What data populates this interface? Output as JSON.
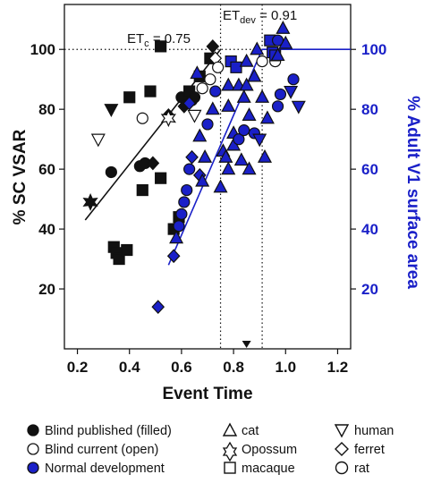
{
  "chart_data": {
    "type": "scatter",
    "xlabel": "Event Time",
    "ylabel": "% SC VSAR",
    "ylabel_right": "% Adult V1 surface area",
    "xlim": [
      0.15,
      1.25
    ],
    "ylim": [
      0,
      115
    ],
    "x_ticks": [
      "0.2",
      "0.4",
      "0.6",
      "0.8",
      "1.0",
      "1.2"
    ],
    "y_ticks": [
      "20",
      "40",
      "60",
      "80",
      "100"
    ],
    "y_ticks_right": [
      "20",
      "40",
      "60",
      "80",
      "100"
    ],
    "annotations": [
      {
        "main": "ET",
        "sub": "c",
        "rest": " = 0.75",
        "x": 0.75
      },
      {
        "main": "ET",
        "sub": "dev",
        "rest": " = 0.91",
        "x": 0.91
      }
    ],
    "arrow_marker_x": 0.85,
    "reference_line_y": 100,
    "colors": {
      "black": "#111111",
      "blue": "#1a20c8",
      "open": "#ffffff"
    },
    "series": [
      {
        "name": "Blind published (filled)",
        "color": "#111111",
        "points": [
          {
            "x": 0.25,
            "y": 49,
            "m": "star"
          },
          {
            "x": 0.33,
            "y": 59,
            "m": "circle"
          },
          {
            "x": 0.33,
            "y": 80,
            "m": "tri-down"
          },
          {
            "x": 0.34,
            "y": 34,
            "m": "square"
          },
          {
            "x": 0.35,
            "y": 32,
            "m": "square"
          },
          {
            "x": 0.36,
            "y": 30,
            "m": "square"
          },
          {
            "x": 0.39,
            "y": 33,
            "m": "square"
          },
          {
            "x": 0.4,
            "y": 84,
            "m": "square"
          },
          {
            "x": 0.44,
            "y": 61,
            "m": "circle"
          },
          {
            "x": 0.45,
            "y": 53,
            "m": "square"
          },
          {
            "x": 0.46,
            "y": 62,
            "m": "circle"
          },
          {
            "x": 0.48,
            "y": 86,
            "m": "square"
          },
          {
            "x": 0.49,
            "y": 62,
            "m": "diamond"
          },
          {
            "x": 0.52,
            "y": 101,
            "m": "square"
          },
          {
            "x": 0.52,
            "y": 57,
            "m": "square"
          },
          {
            "x": 0.55,
            "y": 78,
            "m": "diamond"
          },
          {
            "x": 0.57,
            "y": 40,
            "m": "square"
          },
          {
            "x": 0.59,
            "y": 44,
            "m": "square"
          },
          {
            "x": 0.6,
            "y": 84,
            "m": "circle"
          },
          {
            "x": 0.61,
            "y": 81,
            "m": "diamond"
          },
          {
            "x": 0.63,
            "y": 86,
            "m": "square"
          },
          {
            "x": 0.64,
            "y": 83,
            "m": "circle"
          },
          {
            "x": 0.65,
            "y": 84,
            "m": "circle"
          },
          {
            "x": 0.67,
            "y": 91,
            "m": "square"
          },
          {
            "x": 0.71,
            "y": 97,
            "m": "square"
          },
          {
            "x": 0.72,
            "y": 101,
            "m": "diamond"
          }
        ]
      },
      {
        "name": "Blind current (open)",
        "color": "#ffffff",
        "points": [
          {
            "x": 0.28,
            "y": 70,
            "m": "tri-down"
          },
          {
            "x": 0.45,
            "y": 77,
            "m": "circle"
          },
          {
            "x": 0.55,
            "y": 77,
            "m": "star"
          },
          {
            "x": 0.65,
            "y": 78,
            "m": "tri-down"
          },
          {
            "x": 0.68,
            "y": 87,
            "m": "circle"
          },
          {
            "x": 0.71,
            "y": 90,
            "m": "circle"
          },
          {
            "x": 0.73,
            "y": 97,
            "m": "diamond"
          },
          {
            "x": 0.74,
            "y": 94,
            "m": "circle"
          },
          {
            "x": 0.91,
            "y": 96,
            "m": "circle"
          },
          {
            "x": 0.96,
            "y": 96,
            "m": "circle"
          }
        ]
      },
      {
        "name": "Normal development",
        "color": "#1a20c8",
        "points": [
          {
            "x": 0.51,
            "y": 14,
            "m": "diamond"
          },
          {
            "x": 0.57,
            "y": 31,
            "m": "diamond"
          },
          {
            "x": 0.58,
            "y": 37,
            "m": "triangle"
          },
          {
            "x": 0.59,
            "y": 41,
            "m": "circle"
          },
          {
            "x": 0.6,
            "y": 45,
            "m": "circle"
          },
          {
            "x": 0.61,
            "y": 49,
            "m": "circle"
          },
          {
            "x": 0.62,
            "y": 53,
            "m": "circle"
          },
          {
            "x": 0.63,
            "y": 60,
            "m": "circle"
          },
          {
            "x": 0.63,
            "y": 82,
            "m": "diamond"
          },
          {
            "x": 0.64,
            "y": 64,
            "m": "diamond"
          },
          {
            "x": 0.66,
            "y": 92,
            "m": "triangle"
          },
          {
            "x": 0.67,
            "y": 58,
            "m": "diamond"
          },
          {
            "x": 0.67,
            "y": 71,
            "m": "triangle"
          },
          {
            "x": 0.68,
            "y": 56,
            "m": "triangle"
          },
          {
            "x": 0.69,
            "y": 64,
            "m": "triangle"
          },
          {
            "x": 0.7,
            "y": 75,
            "m": "circle"
          },
          {
            "x": 0.72,
            "y": 80,
            "m": "triangle"
          },
          {
            "x": 0.73,
            "y": 86,
            "m": "circle"
          },
          {
            "x": 0.75,
            "y": 54,
            "m": "triangle"
          },
          {
            "x": 0.76,
            "y": 66,
            "m": "triangle"
          },
          {
            "x": 0.77,
            "y": 64,
            "m": "triangle"
          },
          {
            "x": 0.78,
            "y": 60,
            "m": "triangle"
          },
          {
            "x": 0.78,
            "y": 81,
            "m": "triangle"
          },
          {
            "x": 0.78,
            "y": 88,
            "m": "triangle"
          },
          {
            "x": 0.79,
            "y": 96,
            "m": "square"
          },
          {
            "x": 0.8,
            "y": 68,
            "m": "triangle"
          },
          {
            "x": 0.8,
            "y": 72,
            "m": "triangle"
          },
          {
            "x": 0.81,
            "y": 94,
            "m": "square"
          },
          {
            "x": 0.82,
            "y": 70,
            "m": "circle"
          },
          {
            "x": 0.82,
            "y": 88,
            "m": "triangle"
          },
          {
            "x": 0.83,
            "y": 63,
            "m": "triangle"
          },
          {
            "x": 0.84,
            "y": 73,
            "m": "circle"
          },
          {
            "x": 0.84,
            "y": 84,
            "m": "triangle"
          },
          {
            "x": 0.85,
            "y": 96,
            "m": "triangle"
          },
          {
            "x": 0.85,
            "y": 88,
            "m": "triangle"
          },
          {
            "x": 0.86,
            "y": 60,
            "m": "triangle"
          },
          {
            "x": 0.86,
            "y": 78,
            "m": "triangle"
          },
          {
            "x": 0.88,
            "y": 91,
            "m": "triangle"
          },
          {
            "x": 0.88,
            "y": 72,
            "m": "circle"
          },
          {
            "x": 0.89,
            "y": 100,
            "m": "triangle"
          },
          {
            "x": 0.9,
            "y": 70,
            "m": "tri-down"
          },
          {
            "x": 0.91,
            "y": 84,
            "m": "triangle"
          },
          {
            "x": 0.92,
            "y": 64,
            "m": "triangle"
          },
          {
            "x": 0.93,
            "y": 77,
            "m": "triangle"
          },
          {
            "x": 0.94,
            "y": 103,
            "m": "square"
          },
          {
            "x": 0.95,
            "y": 99,
            "m": "square"
          },
          {
            "x": 0.96,
            "y": 98,
            "m": "square"
          },
          {
            "x": 0.97,
            "y": 81,
            "m": "circle"
          },
          {
            "x": 0.97,
            "y": 103,
            "m": "circle"
          },
          {
            "x": 0.98,
            "y": 85,
            "m": "circle"
          },
          {
            "x": 0.99,
            "y": 107,
            "m": "triangle"
          },
          {
            "x": 1.0,
            "y": 102,
            "m": "triangle"
          },
          {
            "x": 1.02,
            "y": 86,
            "m": "tri-down"
          },
          {
            "x": 1.03,
            "y": 90,
            "m": "circle"
          },
          {
            "x": 1.05,
            "y": 81,
            "m": "tri-down"
          },
          {
            "x": 0.97,
            "y": 98,
            "m": "triangle"
          }
        ]
      }
    ],
    "fit_lines": [
      {
        "color": "#111111",
        "from": [
          0.23,
          43
        ],
        "to": [
          0.75,
          100
        ]
      },
      {
        "color": "#1a20c8",
        "from": [
          0.55,
          28
        ],
        "to": [
          0.91,
          100
        ]
      },
      {
        "color": "#1a20c8",
        "from": [
          0.91,
          100
        ],
        "to": [
          1.25,
          100
        ]
      }
    ],
    "dotted_verticals": [
      0.75,
      0.91
    ]
  },
  "legend": {
    "blind_published": "Blind published (filled)",
    "blind_current": "Blind current (open)",
    "normal_development": "Normal development",
    "cat": "cat",
    "opossum": "Opossum",
    "macaque": "macaque",
    "human": "human",
    "ferret": "ferret",
    "rat": "rat"
  }
}
